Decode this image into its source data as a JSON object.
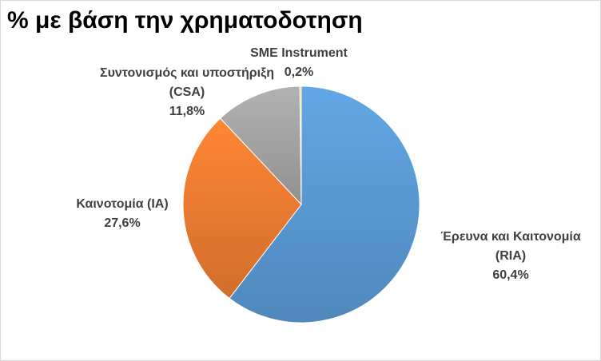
{
  "chart_data": {
    "type": "pie",
    "title": "% με βάση την χρηματοδοτηση",
    "slices": [
      {
        "name": "Έρευνα και Καιτονομία (RIA)",
        "name_lines": [
          "Έρευνα και Καιτονομία",
          "(RIA)"
        ],
        "value": 60.4,
        "value_label": "60,4%",
        "color": "#5b9bd5"
      },
      {
        "name": "Καινοτομία (IA)",
        "name_lines": [
          "Καινοτομία (IA)"
        ],
        "value": 27.6,
        "value_label": "27,6%",
        "color": "#ed7d31"
      },
      {
        "name": "Συντονισμός και υποστήριξη (CSA)",
        "name_lines": [
          "Συντονισμός και υποστήριξη",
          "(CSA)"
        ],
        "value": 11.8,
        "value_label": "11,8%",
        "color": "#a5a5a5"
      },
      {
        "name": "SME Instrument",
        "name_lines": [
          "SME Instrument"
        ],
        "value": 0.2,
        "value_label": "0,2%",
        "color": "#ffc000"
      }
    ]
  }
}
